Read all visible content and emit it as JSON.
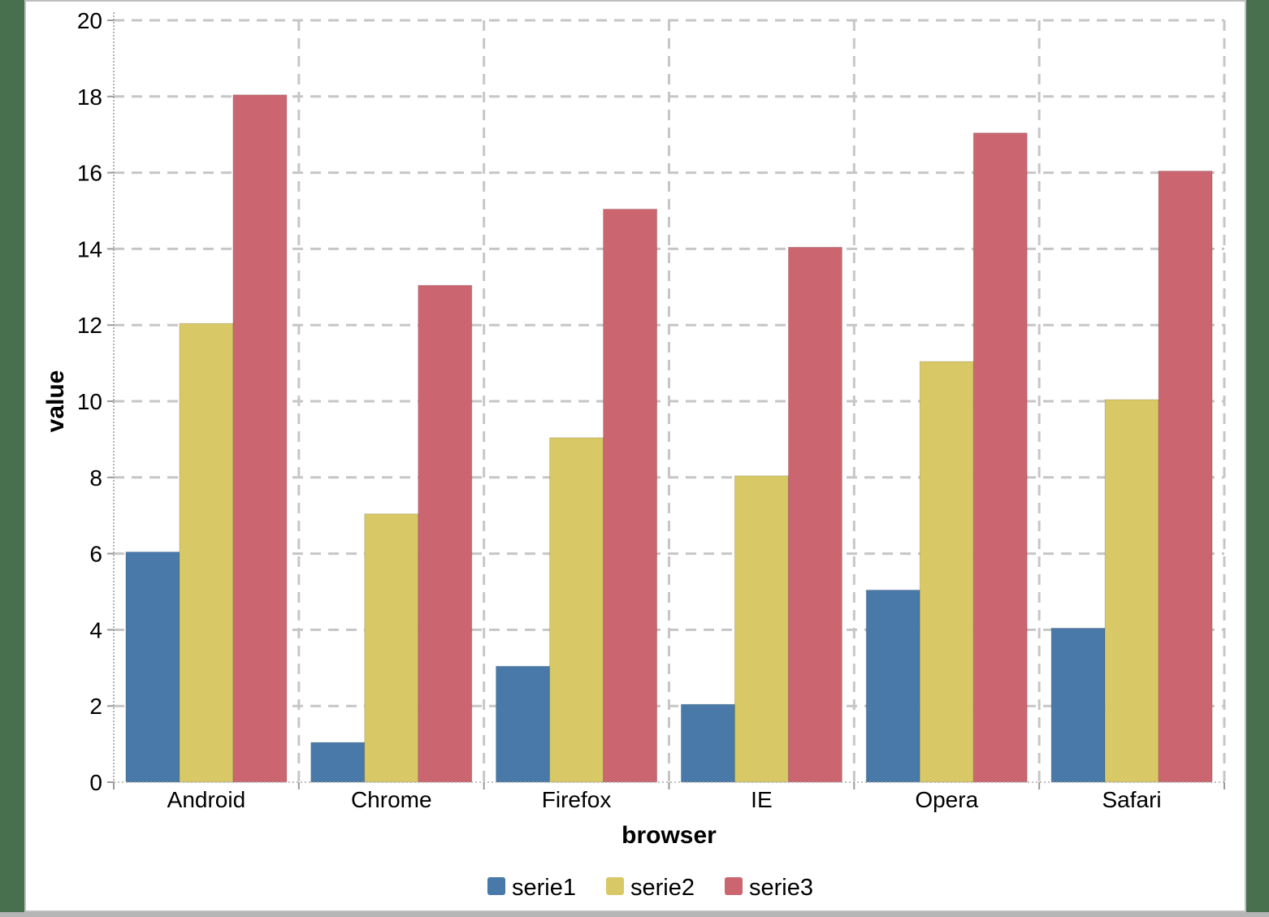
{
  "window": {
    "background_color": "#48704E",
    "panel_background": "#FFFFFF",
    "panel_border_color": "#BFBFBF",
    "bottom_bar_color": "#B5B5B5"
  },
  "chart_data": {
    "type": "bar",
    "title": "",
    "xlabel": "browser",
    "ylabel": "value",
    "categories": [
      "Android",
      "Chrome",
      "Firefox",
      "IE",
      "Opera",
      "Safari"
    ],
    "series": [
      {
        "name": "serie1",
        "color": "#4879A8",
        "values": [
          6,
          1,
          3,
          2,
          5,
          4
        ]
      },
      {
        "name": "serie2",
        "color": "#D8C966",
        "values": [
          12,
          7,
          9,
          8,
          11,
          10
        ]
      },
      {
        "name": "serie3",
        "color": "#CB6670",
        "values": [
          18,
          13,
          15,
          14,
          17,
          16
        ]
      }
    ],
    "y_axis": {
      "min": 0,
      "max": 20,
      "tick_step": 2,
      "tick_labels": [
        "0",
        "2",
        "4",
        "6",
        "8",
        "10",
        "12",
        "14",
        "16",
        "18",
        "20"
      ]
    },
    "x_axis": {
      "tick_labels": [
        "Android",
        "Chrome",
        "Firefox",
        "IE",
        "Opera",
        "Safari"
      ]
    },
    "grid": {
      "horizontal": true,
      "vertical": true,
      "style": "dashed",
      "color": "#C6C6C6"
    },
    "axis_color": "#9A9A9A",
    "legend": {
      "position": "bottom",
      "items": [
        "serie1",
        "serie2",
        "serie3"
      ]
    },
    "ylim": [
      0,
      20
    ]
  }
}
